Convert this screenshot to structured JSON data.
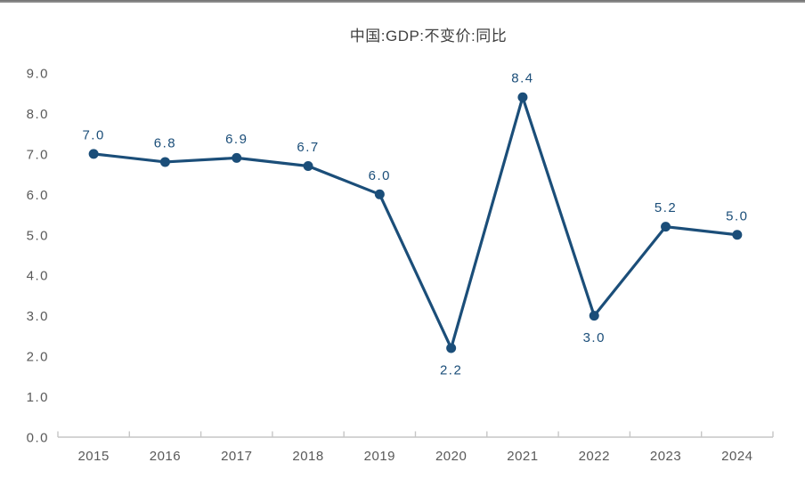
{
  "page": {
    "background": "#ffffff",
    "top_rule_color": "#808080"
  },
  "chart_data": {
    "type": "line",
    "title": "中国:GDP:不变价:同比",
    "categories": [
      "2015",
      "2016",
      "2017",
      "2018",
      "2019",
      "2020",
      "2021",
      "2022",
      "2023",
      "2024"
    ],
    "series": [
      {
        "name": "中国:GDP:不变价:同比",
        "values": [
          7.0,
          6.8,
          6.9,
          6.7,
          6.0,
          2.2,
          8.4,
          3.0,
          5.2,
          5.0
        ]
      }
    ],
    "data_labels": [
      "7.0",
      "6.8",
      "6.9",
      "6.7",
      "6.0",
      "2.2",
      "8.4",
      "3.0",
      "5.2",
      "5.0"
    ],
    "data_label_positions": [
      "above",
      "above",
      "above",
      "above",
      "above",
      "below",
      "above",
      "below",
      "above",
      "above"
    ],
    "y_tick_labels": [
      "0.0",
      "1.0",
      "2.0",
      "3.0",
      "4.0",
      "5.0",
      "6.0",
      "7.0",
      "8.0",
      "9.0"
    ],
    "ylim": [
      0,
      9
    ],
    "xlabel": "",
    "ylabel": "",
    "grid": false,
    "legend": "none",
    "colors": {
      "line": "#1B4E79",
      "marker": "#1B4E79",
      "data_label": "#1B4E79",
      "axis_line": "#C6C6C6",
      "tick_label": "#595959",
      "title": "#404040"
    }
  }
}
